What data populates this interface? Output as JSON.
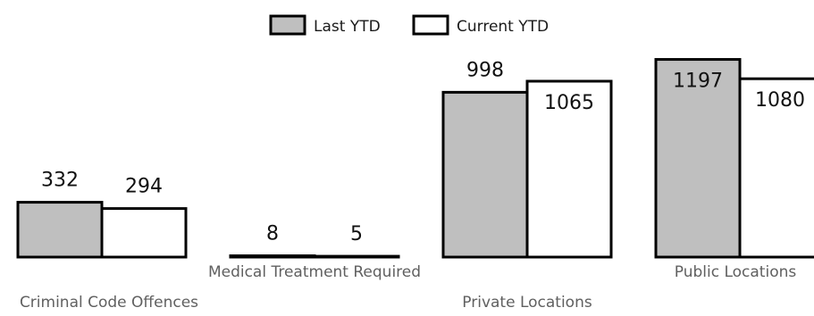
{
  "chart_data": {
    "type": "bar",
    "categories": [
      "Criminal Code Offences",
      "Medical Treatment Required",
      "Private Locations",
      "Public Locations"
    ],
    "series": [
      {
        "name": "Last YTD",
        "values": [
          332,
          8,
          998,
          1197
        ],
        "color": "#bfbfbf"
      },
      {
        "name": "Current YTD",
        "values": [
          294,
          5,
          1065,
          1080
        ],
        "color": "#ffffff"
      }
    ],
    "data_labels": true,
    "legend_position": "top-center",
    "grid": false
  }
}
